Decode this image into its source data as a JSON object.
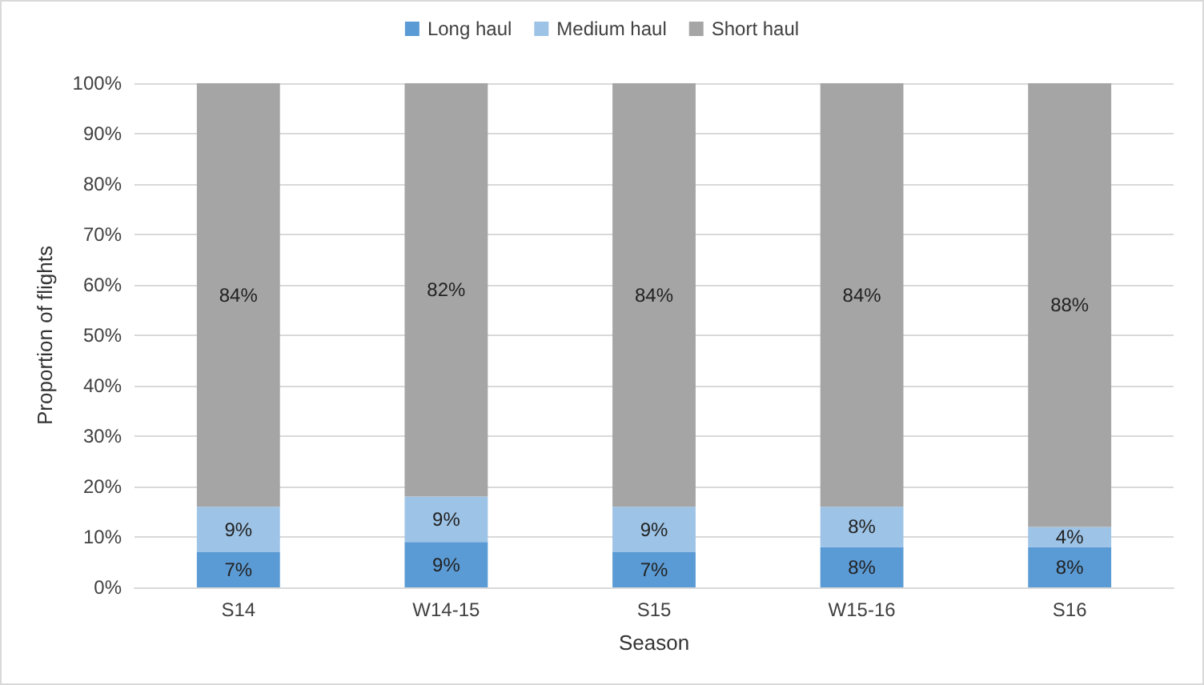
{
  "chart_data": {
    "type": "bar",
    "stacked": true,
    "xlabel": "Season",
    "ylabel": "Proportion of flights",
    "categories": [
      "S14",
      "W14-15",
      "S15",
      "W15-16",
      "S16"
    ],
    "series": [
      {
        "name": "Long haul",
        "color": "#5b9bd5",
        "values": [
          7,
          9,
          7,
          8,
          8
        ],
        "value_labels": [
          "7%",
          "9%",
          "7%",
          "8%",
          "8%"
        ]
      },
      {
        "name": "Medium haul",
        "color": "#9dc3e6",
        "values": [
          9,
          9,
          9,
          8,
          4
        ],
        "value_labels": [
          "9%",
          "9%",
          "9%",
          "8%",
          "4%"
        ]
      },
      {
        "name": "Short haul",
        "color": "#a5a5a5",
        "values": [
          84,
          82,
          84,
          84,
          88
        ],
        "value_labels": [
          "84%",
          "82%",
          "84%",
          "84%",
          "88%"
        ]
      }
    ],
    "ylim": [
      0,
      100
    ],
    "yticks": [
      {
        "value": 0,
        "label": "0%"
      },
      {
        "value": 10,
        "label": "10%"
      },
      {
        "value": 20,
        "label": "20%"
      },
      {
        "value": 30,
        "label": "30%"
      },
      {
        "value": 40,
        "label": "40%"
      },
      {
        "value": 50,
        "label": "50%"
      },
      {
        "value": 60,
        "label": "60%"
      },
      {
        "value": 70,
        "label": "70%"
      },
      {
        "value": 80,
        "label": "80%"
      },
      {
        "value": 90,
        "label": "90%"
      },
      {
        "value": 100,
        "label": "100%"
      }
    ],
    "grid": "y",
    "legend": "top"
  }
}
